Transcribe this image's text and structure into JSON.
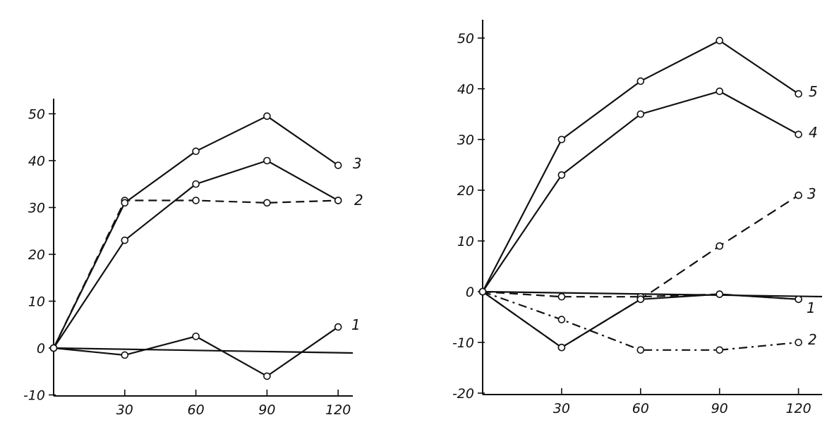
{
  "chart_data": [
    {
      "type": "line",
      "title": "",
      "xlabel": "",
      "ylabel": "",
      "x": [
        0,
        30,
        60,
        90,
        120
      ],
      "xticks": [
        "30",
        "60",
        "90",
        "120"
      ],
      "yticks": [
        "-10",
        "0",
        "10",
        "20",
        "30",
        "40",
        "50"
      ],
      "ylim": [
        -10,
        52
      ],
      "xlim": [
        0,
        128
      ],
      "series": [
        {
          "name": "1",
          "dash": "solid",
          "values": [
            0,
            -1.5,
            2.5,
            -6,
            4.5
          ]
        },
        {
          "name": "2",
          "dash": "dashed",
          "values": [
            0,
            31.5,
            31.5,
            31,
            31.5
          ]
        },
        {
          "name": "3",
          "dash": "solid",
          "values": [
            0,
            31,
            42,
            49.5,
            39
          ]
        },
        {
          "name": "",
          "dash": "solid",
          "values": [
            0,
            23,
            35,
            40,
            31.5
          ]
        }
      ]
    },
    {
      "type": "line",
      "title": "",
      "xlabel": "",
      "ylabel": "",
      "x": [
        0,
        30,
        60,
        90,
        120
      ],
      "xticks": [
        "30",
        "60",
        "90",
        "120"
      ],
      "yticks": [
        "-20",
        "-10",
        "0",
        "10",
        "20",
        "30",
        "40",
        "50"
      ],
      "ylim": [
        -20,
        52
      ],
      "xlim": [
        0,
        128
      ],
      "series": [
        {
          "name": "1",
          "dash": "dashed",
          "values": [
            0,
            -1,
            -1,
            -0.5,
            -1.5
          ]
        },
        {
          "name": "2",
          "dash": "dashdot",
          "values": [
            0,
            -5.5,
            -11.5,
            -11.5,
            -10
          ]
        },
        {
          "name": "3",
          "dash": "longdash",
          "values": [
            0,
            -11,
            -1.5,
            9,
            19
          ]
        },
        {
          "name": "4",
          "dash": "solid",
          "values": [
            0,
            23,
            35,
            39.5,
            31
          ]
        },
        {
          "name": "5",
          "dash": "solid",
          "values": [
            0,
            30,
            41.5,
            49.5,
            39
          ]
        },
        {
          "name": "",
          "dash": "solid",
          "values": [
            0,
            -11,
            -1.5,
            -0.5,
            -1.5
          ]
        }
      ]
    }
  ]
}
